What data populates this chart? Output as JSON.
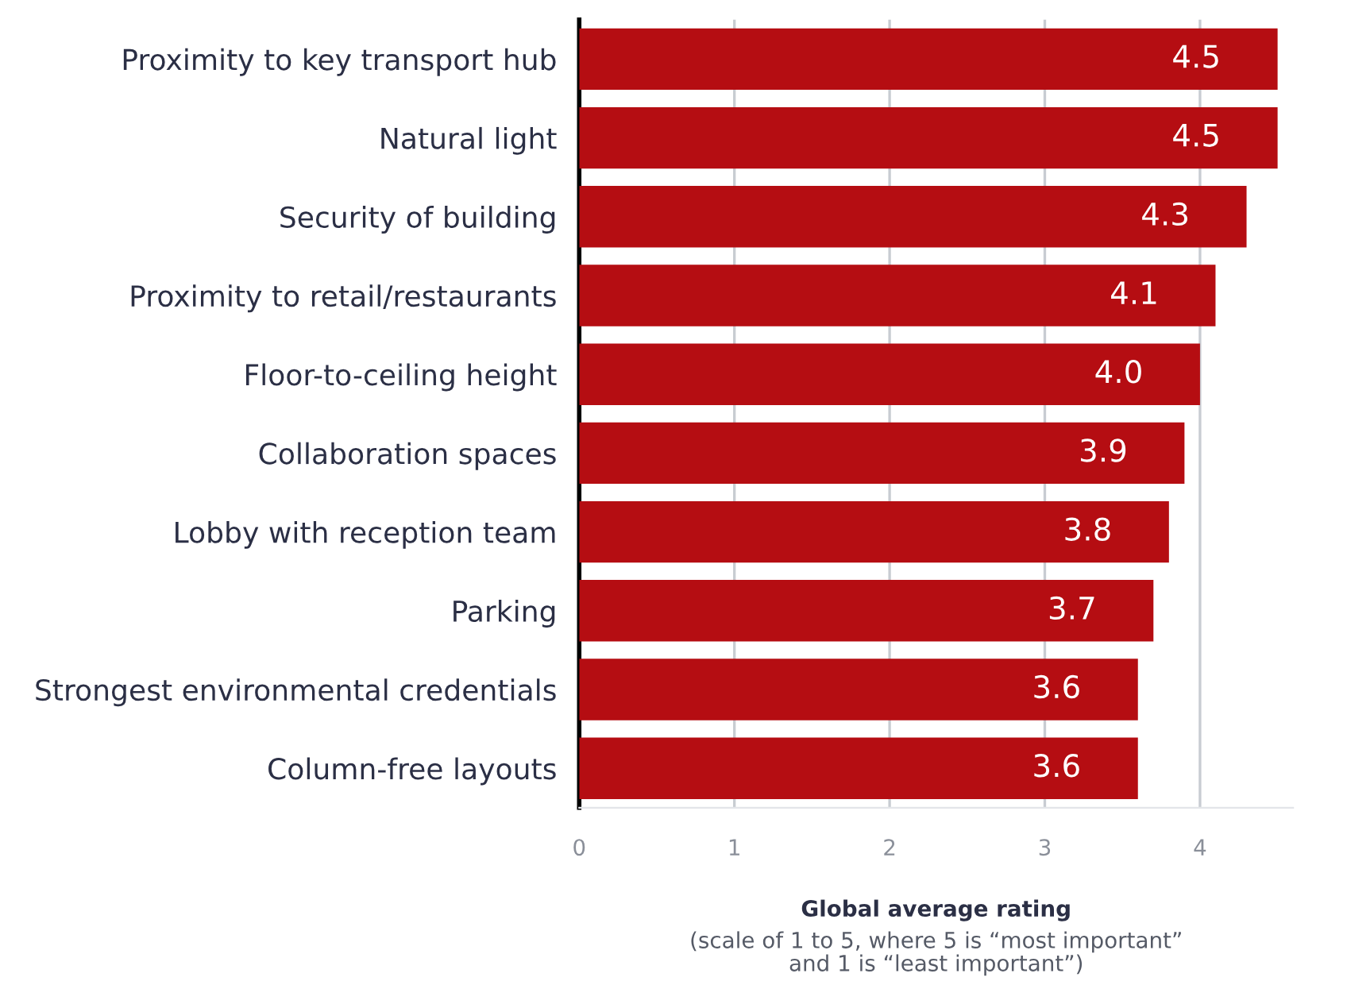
{
  "chart_data": {
    "type": "bar",
    "orientation": "horizontal",
    "categories": [
      "Proximity to key transport hub",
      "Natural light",
      "Security of building",
      "Proximity to retail/restaurants",
      "Floor-to-ceiling height",
      "Collaboration spaces",
      "Lobby with reception team",
      "Parking",
      "Strongest environmental credentials",
      "Column-free layouts"
    ],
    "values": [
      4.5,
      4.5,
      4.3,
      4.1,
      4.0,
      3.9,
      3.8,
      3.7,
      3.6,
      3.6
    ],
    "color": "#b50d12",
    "value_labels": [
      "4.5",
      "4.5",
      "4.3",
      "4.1",
      "4.0",
      "3.9",
      "3.8",
      "3.7",
      "3.6",
      "3.6"
    ],
    "xlim": [
      0,
      4.6
    ],
    "xticks": [
      0,
      1,
      2,
      3,
      4
    ],
    "grid": "x",
    "xlabel": "Global average rating",
    "annotations": [
      "(scale of 1 to 5, where 5 is “most important”\nand 1 is “least important”)"
    ]
  }
}
